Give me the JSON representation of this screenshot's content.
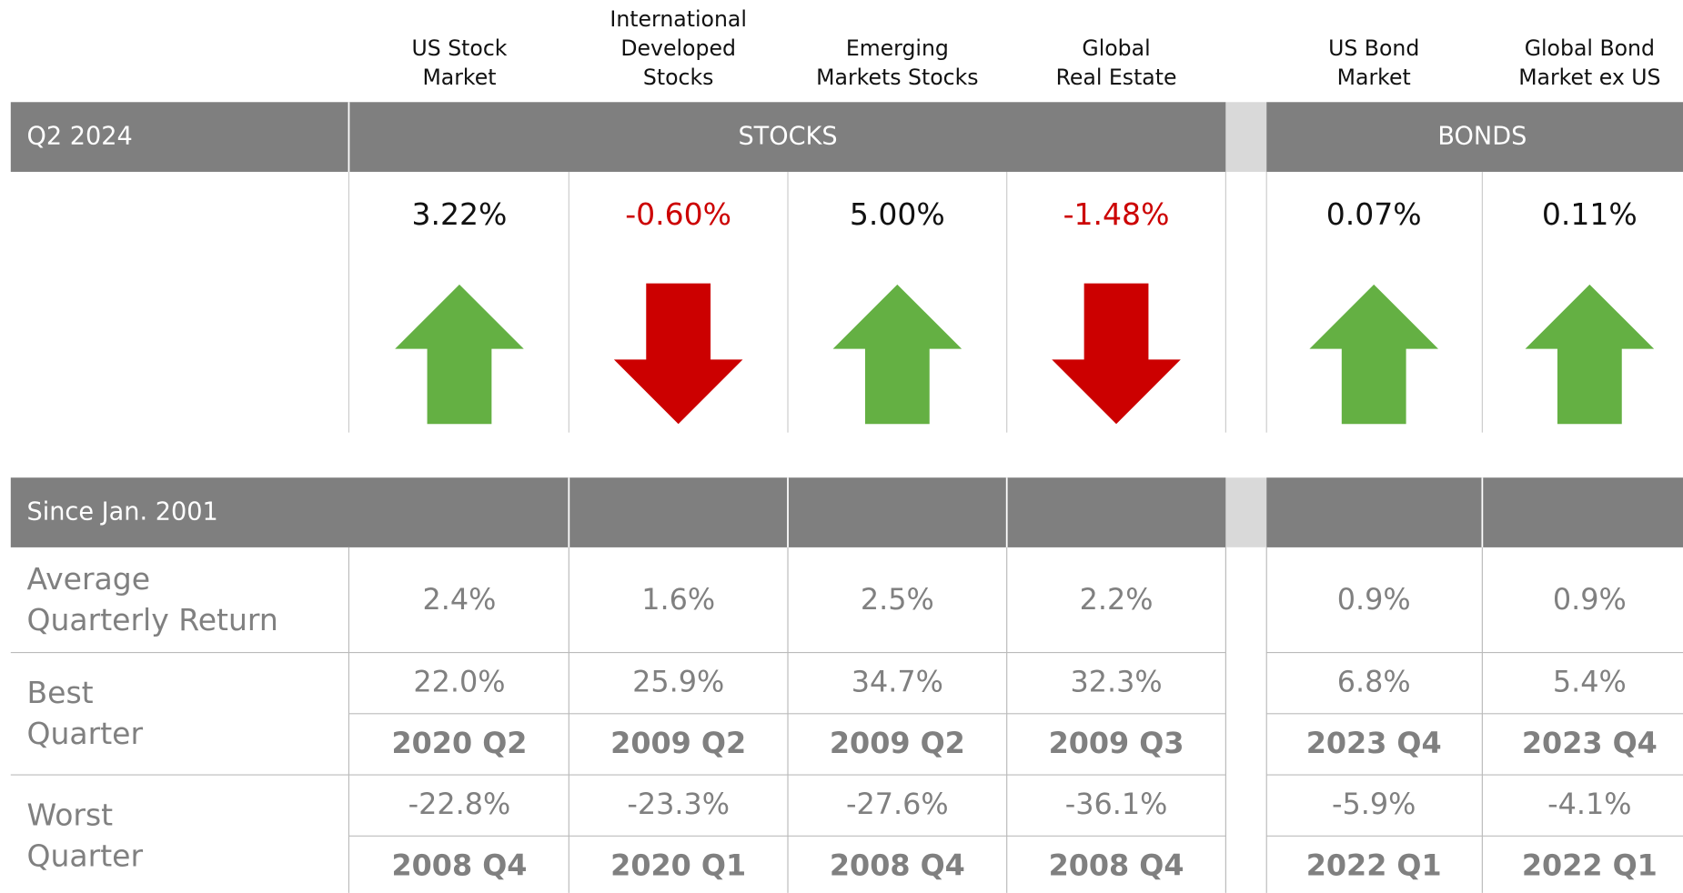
{
  "period": "Q2 2024",
  "groups": [
    "STOCKS",
    "BONDS"
  ],
  "since": "Since Jan. 2001",
  "row_labels": {
    "average": [
      "Average",
      "Quarterly Return"
    ],
    "best": [
      "Best",
      "Quarter"
    ],
    "worst": [
      "Worst",
      "Quarter"
    ]
  },
  "columns": [
    {
      "header": [
        "US Stock",
        "Market"
      ],
      "q2": "3.22%",
      "average": "2.4%",
      "best": "22.0%",
      "best_quarter": "2020 Q2",
      "worst": "-22.8%",
      "worst_quarter": "2008 Q4"
    },
    {
      "header": [
        "International",
        "Developed",
        "Stocks"
      ],
      "q2": "-0.60%",
      "average": "1.6%",
      "best": "25.9%",
      "best_quarter": "2009 Q2",
      "worst": "-23.3%",
      "worst_quarter": "2020 Q1"
    },
    {
      "header": [
        "Emerging",
        "Markets Stocks"
      ],
      "q2": "5.00%",
      "average": "2.5%",
      "best": "34.7%",
      "best_quarter": "2009 Q2",
      "worst": "-27.6%",
      "worst_quarter": "2008 Q4"
    },
    {
      "header": [
        "Global",
        "Real Estate"
      ],
      "q2": "-1.48%",
      "average": "2.2%",
      "best": "32.3%",
      "best_quarter": "2009 Q3",
      "worst": "-36.1%",
      "worst_quarter": "2008 Q4"
    },
    {
      "header": [
        "US Bond",
        "Market"
      ],
      "q2": "0.07%",
      "average": "0.9%",
      "best": "6.8%",
      "best_quarter": "2023 Q4",
      "worst": "-5.9%",
      "worst_quarter": "2022 Q1"
    },
    {
      "header": [
        "Global Bond",
        "Market ex US"
      ],
      "q2": "0.11%",
      "average": "0.9%",
      "best": "5.4%",
      "best_quarter": "2023 Q4",
      "worst": "-4.1%",
      "worst_quarter": "2022 Q1"
    }
  ]
}
